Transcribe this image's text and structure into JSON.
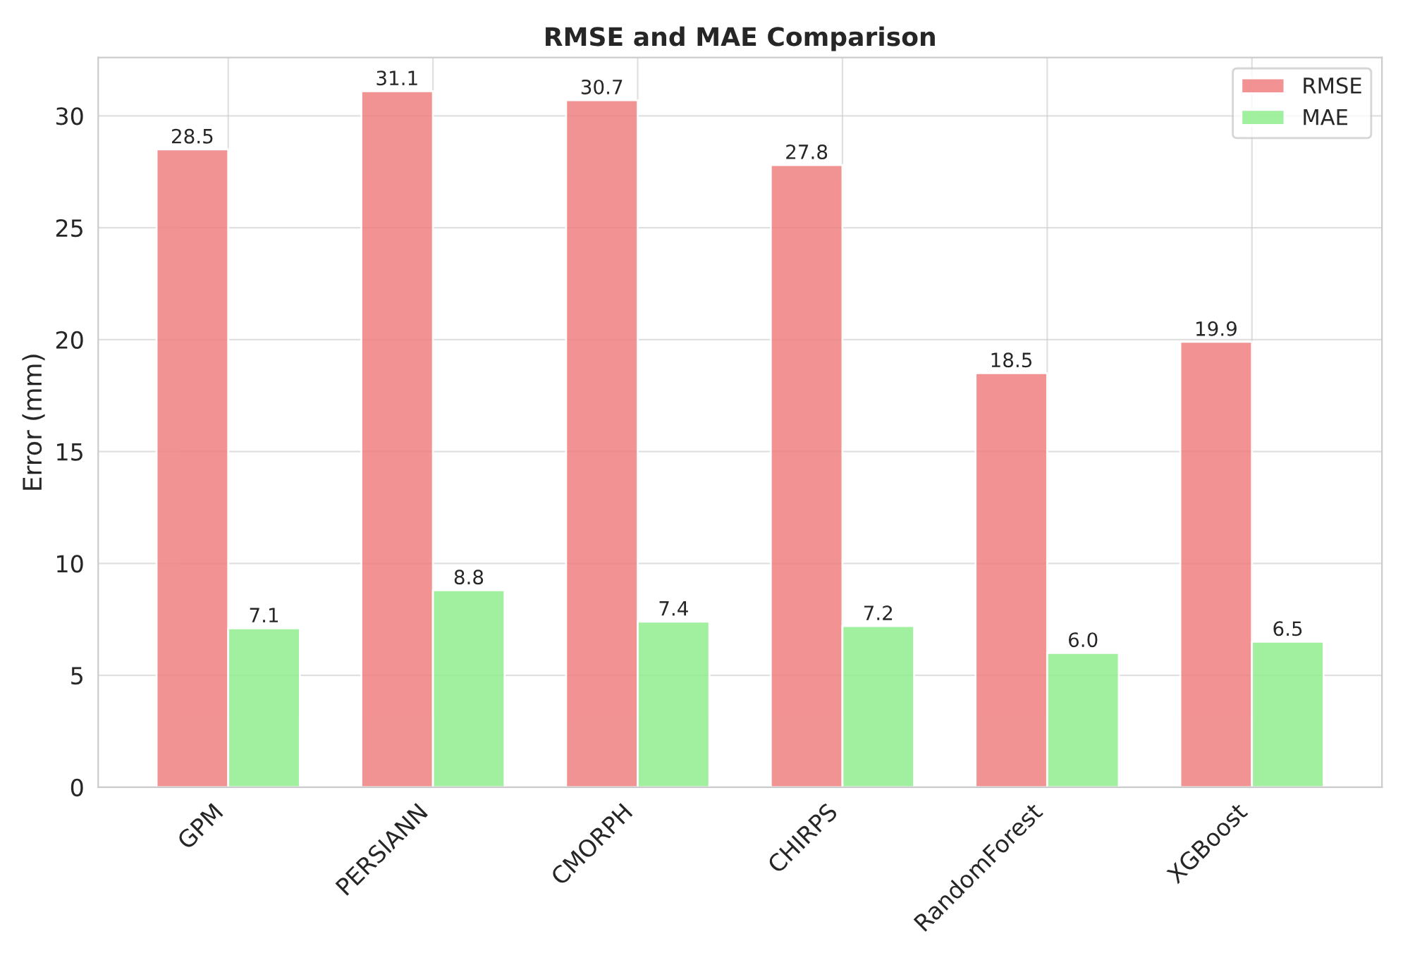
{
  "chart_data": {
    "type": "bar",
    "title": "RMSE and MAE Comparison",
    "ylabel": "Error (mm)",
    "categories": [
      "GPM",
      "PERSIANN",
      "CMORPH",
      "CHIRPS",
      "RandomForest",
      "XGBoost"
    ],
    "series": [
      {
        "name": "RMSE",
        "color": "#f08080",
        "values": [
          28.5,
          31.1,
          30.7,
          27.8,
          18.5,
          19.9
        ],
        "value_labels": [
          "28.5",
          "31.1",
          "30.7",
          "27.8",
          "18.5",
          "19.9"
        ]
      },
      {
        "name": "MAE",
        "color": "#90ee90",
        "values": [
          7.1,
          8.8,
          7.4,
          7.2,
          6.0,
          6.5
        ],
        "value_labels": [
          "7.1",
          "8.8",
          "7.4",
          "7.2",
          "6.0",
          "6.5"
        ]
      }
    ],
    "ylim": [
      0,
      32.6
    ],
    "yticks": [
      0,
      5,
      10,
      15,
      20,
      25,
      30
    ],
    "grid": true,
    "legend": "top right"
  }
}
